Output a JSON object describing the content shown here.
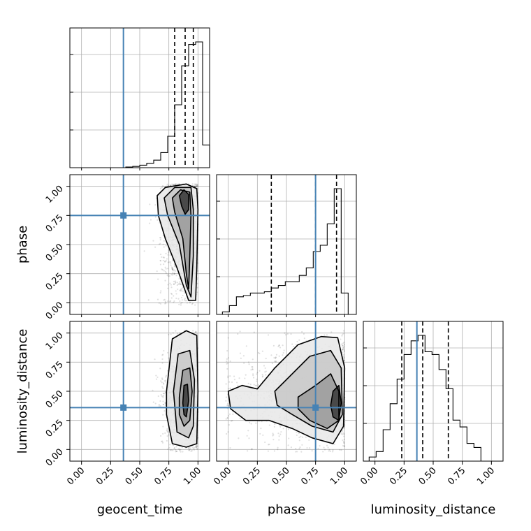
{
  "chart_data": {
    "type": "corner",
    "parameters": [
      "geocent_time",
      "phase",
      "luminosity_distance"
    ],
    "axis_labels": {
      "x": [
        "geocent_time",
        "phase",
        "luminosity_distance"
      ],
      "y": [
        "",
        "phase",
        "luminosity_distance"
      ]
    },
    "ticks": [
      "0.00",
      "0.25",
      "0.50",
      "0.75",
      "1.00"
    ],
    "tick_values": [
      0,
      0.25,
      0.5,
      0.75,
      1.0
    ],
    "range": [
      -0.1,
      1.1
    ],
    "truths": [
      0.36,
      0.75,
      0.36
    ],
    "truth_color": "#4682b4",
    "grid": true,
    "quantiles": {
      "geocent_time": [
        0.8,
        0.89,
        0.96
      ],
      "phase": [
        0.37,
        0.75,
        0.93
      ],
      "luminosity_distance": [
        0.23,
        0.41,
        0.63
      ]
    },
    "histograms": {
      "geocent_time": {
        "x": [
          0.41,
          0.47,
          0.53,
          0.59,
          0.65,
          0.71,
          0.77,
          0.83,
          0.89,
          0.95,
          1.01,
          1.07
        ],
        "values": [
          0.5,
          1,
          2,
          3.5,
          6,
          12,
          25,
          50,
          81,
          98,
          100,
          18
        ]
      },
      "phase": {
        "x": [
          -0.02,
          0.04,
          0.1,
          0.16,
          0.22,
          0.28,
          0.34,
          0.4,
          0.46,
          0.52,
          0.58,
          0.64,
          0.7,
          0.76,
          0.82,
          0.88,
          0.94,
          1.0
        ],
        "values": [
          2,
          7,
          14,
          15,
          17,
          17,
          18,
          21,
          23,
          26,
          26,
          31,
          37,
          50,
          55,
          72,
          100,
          17
        ]
      },
      "luminosity_distance": {
        "x": [
          -0.02,
          0.04,
          0.1,
          0.16,
          0.22,
          0.28,
          0.34,
          0.4,
          0.46,
          0.52,
          0.58,
          0.64,
          0.7,
          0.76,
          0.82,
          0.88,
          0.94
        ],
        "values": [
          3,
          7,
          23,
          42,
          60,
          78,
          88,
          92,
          80,
          78,
          67,
          53,
          30,
          25,
          13,
          10,
          0
        ]
      }
    },
    "contours": [
      {
        "pair": [
          "geocent_time",
          "phase"
        ],
        "levels": [
          [
            [
              0.65,
              0.92
            ],
            [
              0.72,
              0.99
            ],
            [
              0.9,
              1.02
            ],
            [
              0.99,
              0.98
            ],
            [
              1.0,
              0.8
            ],
            [
              0.99,
              0.3
            ],
            [
              0.98,
              0.02
            ],
            [
              0.92,
              0.02
            ],
            [
              0.82,
              0.3
            ],
            [
              0.72,
              0.55
            ],
            [
              0.66,
              0.75
            ]
          ],
          [
            [
              0.71,
              0.9
            ],
            [
              0.8,
              0.99
            ],
            [
              0.94,
              0.99
            ],
            [
              0.96,
              0.8
            ],
            [
              0.96,
              0.4
            ],
            [
              0.94,
              0.05
            ],
            [
              0.9,
              0.15
            ],
            [
              0.84,
              0.5
            ],
            [
              0.74,
              0.75
            ]
          ],
          [
            [
              0.78,
              0.9
            ],
            [
              0.85,
              0.97
            ],
            [
              0.93,
              0.95
            ],
            [
              0.94,
              0.75
            ],
            [
              0.93,
              0.4
            ],
            [
              0.92,
              0.12
            ],
            [
              0.9,
              0.25
            ],
            [
              0.87,
              0.55
            ],
            [
              0.8,
              0.78
            ]
          ],
          [
            [
              0.84,
              0.92
            ],
            [
              0.88,
              0.97
            ],
            [
              0.92,
              0.93
            ],
            [
              0.92,
              0.8
            ],
            [
              0.89,
              0.76
            ],
            [
              0.86,
              0.83
            ]
          ]
        ]
      },
      {
        "pair": [
          "geocent_time",
          "luminosity_distance"
        ],
        "levels": [
          [
            [
              0.73,
              0.5
            ],
            [
              0.78,
              0.95
            ],
            [
              0.9,
              1.02
            ],
            [
              0.99,
              0.98
            ],
            [
              1.0,
              0.5
            ],
            [
              0.99,
              0.05
            ],
            [
              0.9,
              0.02
            ],
            [
              0.78,
              0.05
            ],
            [
              0.73,
              0.3
            ]
          ],
          [
            [
              0.79,
              0.5
            ],
            [
              0.83,
              0.82
            ],
            [
              0.93,
              0.85
            ],
            [
              0.97,
              0.6
            ],
            [
              0.96,
              0.2
            ],
            [
              0.92,
              0.1
            ],
            [
              0.82,
              0.15
            ]
          ],
          [
            [
              0.84,
              0.45
            ],
            [
              0.87,
              0.68
            ],
            [
              0.93,
              0.7
            ],
            [
              0.95,
              0.5
            ],
            [
              0.93,
              0.25
            ],
            [
              0.88,
              0.2
            ],
            [
              0.84,
              0.3
            ]
          ],
          [
            [
              0.87,
              0.4
            ],
            [
              0.88,
              0.55
            ],
            [
              0.91,
              0.56
            ],
            [
              0.92,
              0.42
            ],
            [
              0.9,
              0.28
            ],
            [
              0.88,
              0.3
            ]
          ]
        ]
      },
      {
        "pair": [
          "phase",
          "luminosity_distance"
        ],
        "levels": [
          [
            [
              0.0,
              0.5
            ],
            [
              0.12,
              0.55
            ],
            [
              0.25,
              0.52
            ],
            [
              0.4,
              0.7
            ],
            [
              0.6,
              0.9
            ],
            [
              0.8,
              0.97
            ],
            [
              0.94,
              0.96
            ],
            [
              1.0,
              0.7
            ],
            [
              0.99,
              0.2
            ],
            [
              0.9,
              0.05
            ],
            [
              0.72,
              0.1
            ],
            [
              0.55,
              0.18
            ],
            [
              0.35,
              0.25
            ],
            [
              0.15,
              0.25
            ],
            [
              0.02,
              0.35
            ]
          ],
          [
            [
              0.4,
              0.5
            ],
            [
              0.55,
              0.65
            ],
            [
              0.7,
              0.8
            ],
            [
              0.88,
              0.85
            ],
            [
              0.97,
              0.7
            ],
            [
              0.98,
              0.3
            ],
            [
              0.9,
              0.15
            ],
            [
              0.72,
              0.2
            ],
            [
              0.55,
              0.3
            ],
            [
              0.42,
              0.38
            ]
          ],
          [
            [
              0.6,
              0.45
            ],
            [
              0.75,
              0.55
            ],
            [
              0.88,
              0.65
            ],
            [
              0.95,
              0.5
            ],
            [
              0.95,
              0.25
            ],
            [
              0.85,
              0.18
            ],
            [
              0.7,
              0.25
            ],
            [
              0.6,
              0.35
            ]
          ],
          [
            [
              0.88,
              0.38
            ],
            [
              0.9,
              0.5
            ],
            [
              0.95,
              0.55
            ],
            [
              0.97,
              0.4
            ],
            [
              0.95,
              0.25
            ],
            [
              0.9,
              0.28
            ]
          ]
        ]
      }
    ]
  }
}
